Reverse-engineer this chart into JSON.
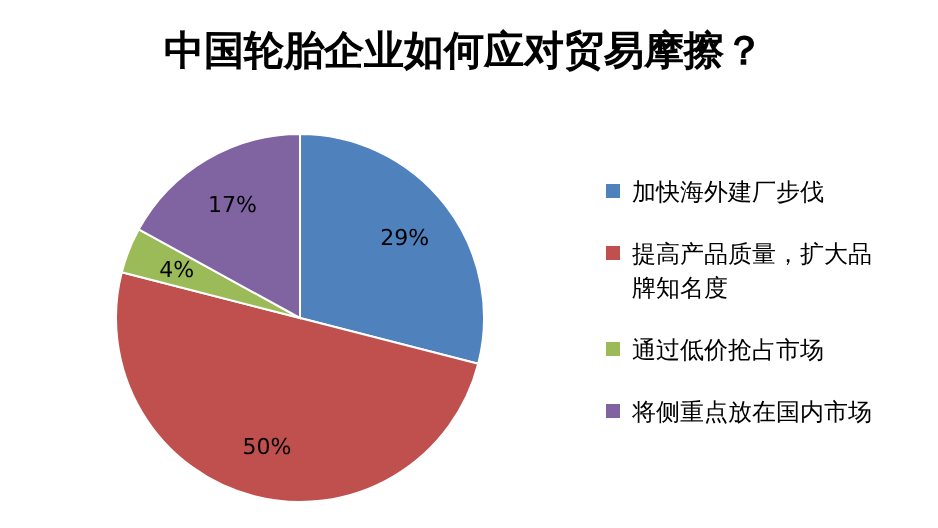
{
  "chart_data": {
    "type": "pie",
    "title": "中国轮胎企业如何应对贸易摩擦？",
    "categories": [
      "加快海外建厂步伐",
      "提高产品质量，扩大品牌知名度",
      "通过低价抢占市场",
      "将侧重点放在国内市场"
    ],
    "values": [
      29,
      50,
      4,
      17
    ],
    "colors": [
      "#4f81bd",
      "#c0504d",
      "#9bbb59",
      "#8064a2"
    ],
    "value_labels": [
      "29%",
      "50%",
      "4%",
      "17%"
    ],
    "legend": "right"
  }
}
